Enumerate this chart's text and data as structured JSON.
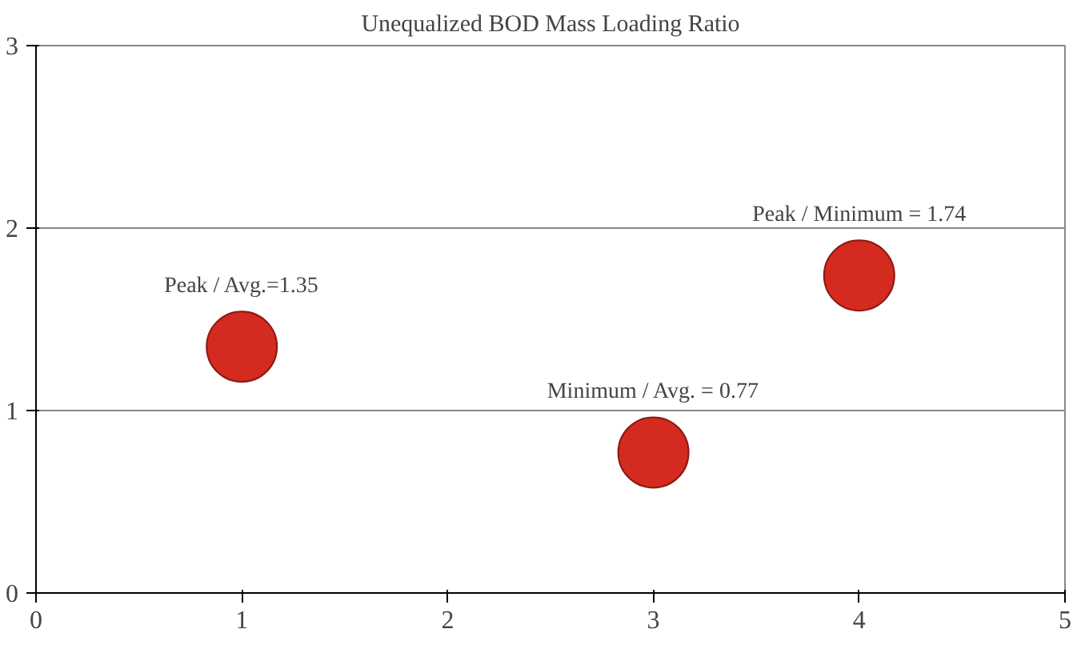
{
  "chart_data": {
    "type": "bubble",
    "title": "Unequalized BOD Mass Loading Ratio",
    "x": [
      1,
      3,
      4
    ],
    "series": [
      {
        "color": "#d42a20",
        "values": [
          1.35,
          0.77,
          1.74
        ],
        "sizes": [
          1,
          1,
          1
        ],
        "value_labels": [
          "Peak / Avg.=1.35",
          "Minimum / Avg. = 0.77",
          "Peak / Minimum = 1.74"
        ]
      }
    ],
    "xlim": [
      0,
      5
    ],
    "ylim": [
      0,
      3
    ],
    "xticks": [
      0,
      1,
      2,
      3,
      4,
      5
    ],
    "yticks": [
      0,
      1,
      2,
      3
    ],
    "grid": "y"
  }
}
